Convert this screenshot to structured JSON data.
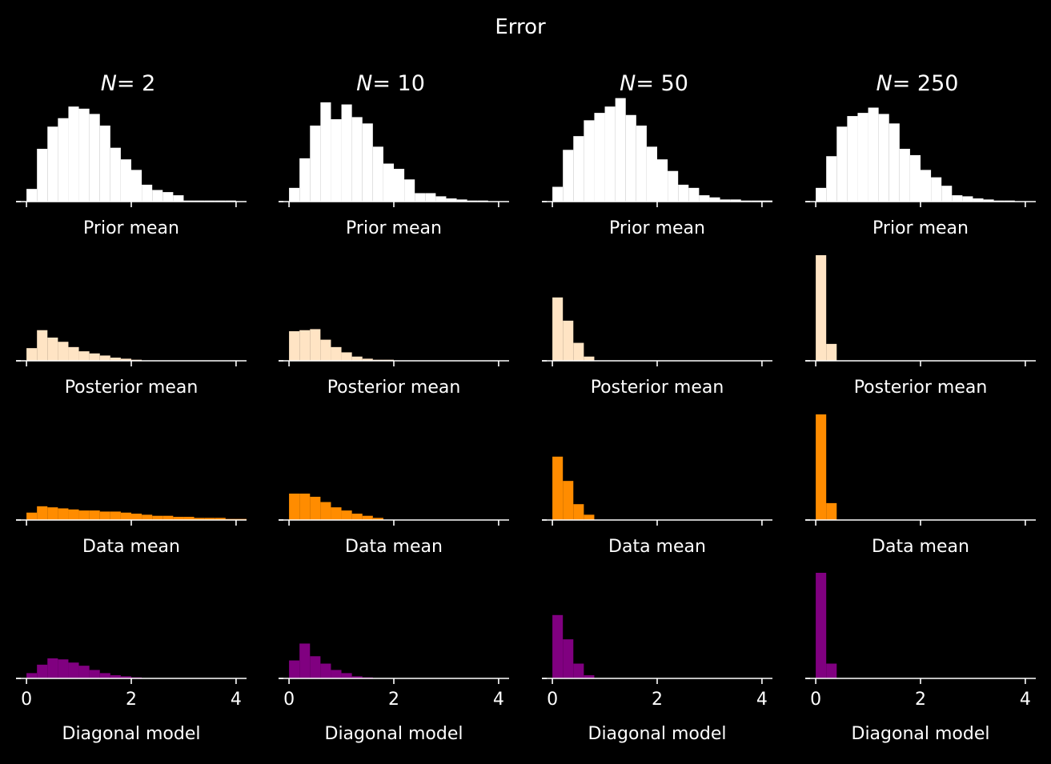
{
  "suptitle": "Error",
  "columns": [
    {
      "title_var": "N",
      "title_val": "= 2"
    },
    {
      "title_var": "N",
      "title_val": "= 10"
    },
    {
      "title_var": "N",
      "title_val": "= 50"
    },
    {
      "title_var": "N",
      "title_val": "= 250"
    }
  ],
  "row_xlabels": [
    "Prior mean",
    "Posterior mean",
    "Data mean",
    "Diagonal model"
  ],
  "colors": {
    "background": "#000000",
    "axes": "#ffffff",
    "prior": "#ffffff",
    "posterior": "#ffe4c4",
    "data": "#ff8c00",
    "diagonal": "#800080"
  },
  "chart_data": {
    "type": "histogram-grid",
    "xlim": [
      -0.2,
      4.2
    ],
    "xticks": [
      0,
      2,
      4
    ],
    "xtick_labels": [
      "0",
      "2",
      "4"
    ],
    "yticks_visible": false,
    "ylim": [
      0,
      1
    ],
    "bin_width": 0.2,
    "rows": [
      {
        "name": "Prior mean",
        "color": "#ffffff",
        "panels": [
          {
            "values": [
              0.12,
              0.5,
              0.71,
              0.79,
              0.9,
              0.88,
              0.83,
              0.72,
              0.51,
              0.4,
              0.3,
              0.16,
              0.11,
              0.09,
              0.06,
              0.01,
              0.01,
              0.01,
              0.01,
              0.01
            ]
          },
          {
            "values": [
              0.13,
              0.41,
              0.72,
              0.94,
              0.78,
              0.92,
              0.8,
              0.74,
              0.52,
              0.36,
              0.31,
              0.21,
              0.08,
              0.08,
              0.05,
              0.03,
              0.02,
              0.01,
              0.01
            ]
          },
          {
            "values": [
              0.14,
              0.49,
              0.62,
              0.77,
              0.84,
              0.9,
              0.98,
              0.82,
              0.72,
              0.52,
              0.4,
              0.29,
              0.16,
              0.13,
              0.06,
              0.04,
              0.02,
              0.02,
              0.01,
              0.01,
              0.01
            ]
          },
          {
            "values": [
              0.13,
              0.43,
              0.71,
              0.81,
              0.84,
              0.89,
              0.83,
              0.74,
              0.5,
              0.44,
              0.3,
              0.23,
              0.15,
              0.06,
              0.05,
              0.03,
              0.02,
              0.01,
              0.01
            ]
          }
        ]
      },
      {
        "name": "Posterior mean",
        "color": "#ffe4c4",
        "panels": [
          {
            "values": [
              0.12,
              0.29,
              0.22,
              0.18,
              0.13,
              0.09,
              0.07,
              0.05,
              0.03,
              0.02,
              0.01
            ]
          },
          {
            "values": [
              0.28,
              0.29,
              0.3,
              0.2,
              0.13,
              0.08,
              0.04,
              0.02,
              0.01,
              0.01
            ]
          },
          {
            "values": [
              0.6,
              0.38,
              0.17,
              0.04
            ]
          },
          {
            "values": [
              1.0,
              0.16
            ]
          }
        ]
      },
      {
        "name": "Data mean",
        "color": "#ff8c00",
        "panels": [
          {
            "values": [
              0.07,
              0.13,
              0.12,
              0.11,
              0.1,
              0.09,
              0.09,
              0.08,
              0.08,
              0.07,
              0.06,
              0.05,
              0.04,
              0.04,
              0.03,
              0.03,
              0.02,
              0.02,
              0.02,
              0.01,
              0.01
            ]
          },
          {
            "values": [
              0.25,
              0.25,
              0.22,
              0.17,
              0.12,
              0.09,
              0.06,
              0.04,
              0.02
            ]
          },
          {
            "values": [
              0.6,
              0.37,
              0.15,
              0.05
            ]
          },
          {
            "values": [
              1.0,
              0.16
            ]
          }
        ]
      },
      {
        "name": "Diagonal model",
        "color": "#800080",
        "panels": [
          {
            "values": [
              0.05,
              0.13,
              0.19,
              0.18,
              0.15,
              0.12,
              0.08,
              0.05,
              0.03,
              0.02,
              0.01
            ]
          },
          {
            "values": [
              0.17,
              0.33,
              0.21,
              0.14,
              0.08,
              0.05,
              0.02,
              0.01
            ]
          },
          {
            "values": [
              0.6,
              0.37,
              0.14,
              0.03
            ]
          },
          {
            "values": [
              1.0,
              0.14
            ]
          }
        ]
      }
    ]
  }
}
